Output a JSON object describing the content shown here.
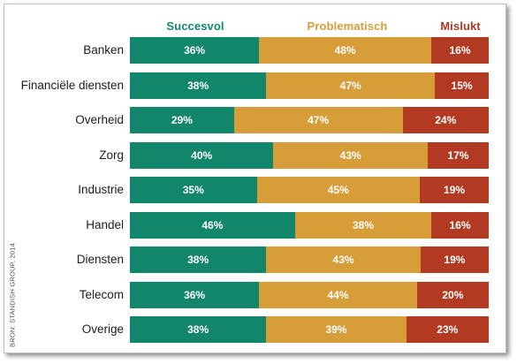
{
  "chart_data": {
    "type": "bar",
    "orientation": "horizontal",
    "stacked": true,
    "categories": [
      "Banken",
      "Financiële diensten",
      "Overheid",
      "Zorg",
      "Industrie",
      "Handel",
      "Diensten",
      "Telecom",
      "Overige"
    ],
    "series": [
      {
        "name": "Succesvol",
        "color": "#11866a",
        "values": [
          36,
          38,
          29,
          40,
          35,
          46,
          38,
          36,
          38
        ]
      },
      {
        "name": "Problematisch",
        "color": "#d69d38",
        "values": [
          48,
          47,
          47,
          43,
          45,
          38,
          43,
          44,
          39
        ]
      },
      {
        "name": "Mislukt",
        "color": "#b23a22",
        "values": [
          16,
          15,
          24,
          17,
          19,
          16,
          19,
          20,
          23
        ]
      }
    ],
    "value_unit": "%",
    "xlim": [
      0,
      100
    ],
    "legend_position": "top",
    "grid": false,
    "source": "BRON: STANDISH GROUP, 2014"
  }
}
